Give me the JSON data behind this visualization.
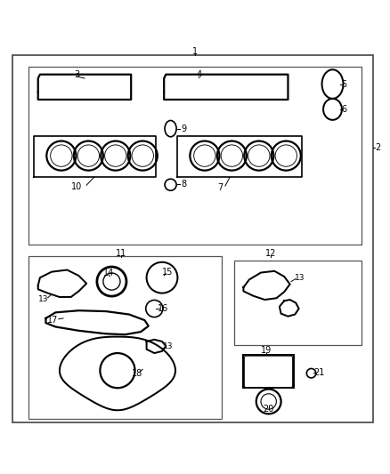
{
  "bg_color": "#ffffff",
  "line_color": "#000000",
  "line_width": 0.8,
  "font_size": 7
}
